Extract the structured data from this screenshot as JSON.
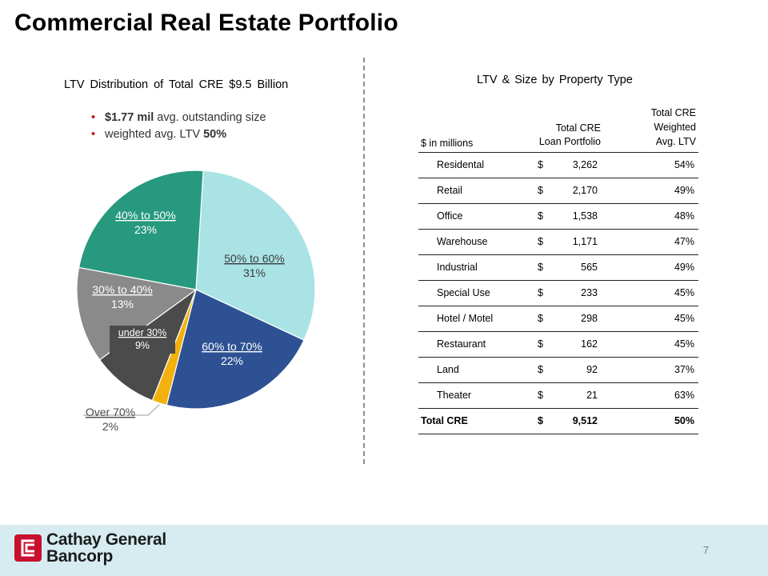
{
  "title": "Commercial Real Estate Portfolio",
  "left": {
    "heading": "LTV Distribution of Total CRE $9.5 Billion",
    "bullets": [
      {
        "bold": "$1.77 mil",
        "text": " avg. outstanding size"
      },
      {
        "text": "weighted avg. LTV ",
        "bold": "50%"
      }
    ]
  },
  "chart_data": {
    "type": "pie",
    "title": "LTV Distribution of Total CRE $9.5 Billion",
    "slices": [
      {
        "label": "50% to 60%",
        "value": 31,
        "value_label": "31%",
        "color": "#a9e3e6"
      },
      {
        "label": "60% to 70%",
        "value": 22,
        "value_label": "22%",
        "color": "#2d5193"
      },
      {
        "label": "Over 70%",
        "value": 2,
        "value_label": "2%",
        "color": "#f3b10e"
      },
      {
        "label": "under 30%",
        "value": 9,
        "value_label": "9%",
        "color": "#4b4b4b"
      },
      {
        "label": "30% to 40%",
        "value": 13,
        "value_label": "13%",
        "color": "#8a8a8a"
      },
      {
        "label": "40% to 50%",
        "value": 23,
        "value_label": "23%",
        "color": "#27997e"
      }
    ]
  },
  "right": {
    "heading": "LTV & Size by Property Type",
    "table": {
      "units_label": "$ in millions",
      "col_portfolio": "Total CRE\nLoan Portfolio",
      "col_ltv": "Total CRE\nWeighted\nAvg. LTV",
      "currency": "$",
      "rows": [
        {
          "name": "Residental",
          "amount": "3,262",
          "ltv": "54%"
        },
        {
          "name": "Retail",
          "amount": "2,170",
          "ltv": "49%"
        },
        {
          "name": "Office",
          "amount": "1,538",
          "ltv": "48%"
        },
        {
          "name": "Warehouse",
          "amount": "1,171",
          "ltv": "47%"
        },
        {
          "name": "Industrial",
          "amount": "565",
          "ltv": "49%"
        },
        {
          "name": "Special Use",
          "amount": "233",
          "ltv": "45%"
        },
        {
          "name": "Hotel / Motel",
          "amount": "298",
          "ltv": "45%"
        },
        {
          "name": "Restaurant",
          "amount": "162",
          "ltv": "45%"
        },
        {
          "name": "Land",
          "amount": "92",
          "ltv": "37%"
        },
        {
          "name": "Theater",
          "amount": "21",
          "ltv": "63%"
        }
      ],
      "total": {
        "name": "Total CRE",
        "amount": "9,512",
        "ltv": "50%"
      }
    }
  },
  "footer": {
    "company": "Cathay General\nBancorp",
    "page_number": "7",
    "logo_color": "#c8102e"
  }
}
